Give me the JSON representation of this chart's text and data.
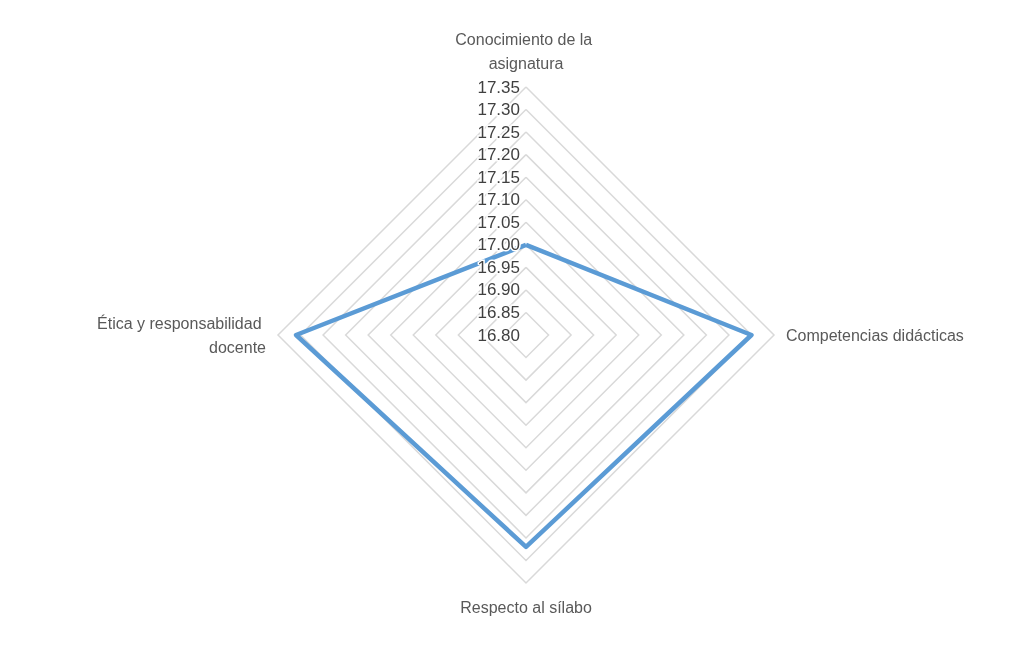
{
  "chart_data": {
    "type": "radar",
    "categories": [
      "Conocimiento de la asignatura",
      "Competencias didácticas",
      "Respecto al sílabo",
      "Ética y responsabilidad docente"
    ],
    "series": [
      {
        "color": "#5b9bd5",
        "values": [
          17.0,
          17.3,
          17.27,
          17.31
        ]
      }
    ],
    "ylim": [
      16.8,
      17.35
    ],
    "yticks": [
      {
        "value": 16.8,
        "label": "16.80"
      },
      {
        "value": 16.85,
        "label": "16.85"
      },
      {
        "value": 16.9,
        "label": "16.90"
      },
      {
        "value": 16.95,
        "label": "16.95"
      },
      {
        "value": 17.0,
        "label": "17.00"
      },
      {
        "value": 17.05,
        "label": "17.05"
      },
      {
        "value": 17.1,
        "label": "17.10"
      },
      {
        "value": 17.15,
        "label": "17.15"
      },
      {
        "value": 17.2,
        "label": "17.20"
      },
      {
        "value": 17.25,
        "label": "17.25"
      },
      {
        "value": 17.3,
        "label": "17.30"
      },
      {
        "value": 17.35,
        "label": "17.35"
      }
    ],
    "grid": true,
    "line_style": "solid"
  }
}
